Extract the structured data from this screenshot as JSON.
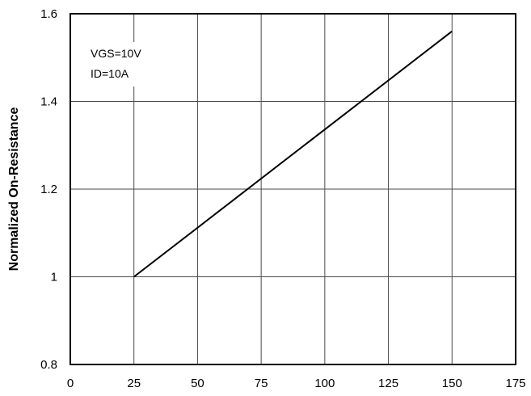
{
  "chart_data": {
    "type": "line",
    "title": "",
    "xlabel": "",
    "ylabel": "Normalized On-Resistance",
    "xlim": [
      0,
      175
    ],
    "ylim": [
      0.8,
      1.6
    ],
    "x_ticks": [
      0,
      25,
      50,
      75,
      100,
      125,
      150,
      175
    ],
    "y_ticks": [
      0.8,
      1.0,
      1.2,
      1.4,
      1.6
    ],
    "x_tick_labels": [
      "0",
      "25",
      "50",
      "75",
      "100",
      "125",
      "150",
      "175"
    ],
    "y_tick_labels": [
      "0.8",
      "1",
      "1.2",
      "1.4",
      "1.6"
    ],
    "grid": true,
    "annotations": [
      "VGS=10V",
      "ID=10A"
    ],
    "series": [
      {
        "x": [
          25,
          150
        ],
        "y": [
          1.0,
          1.56
        ]
      }
    ],
    "colors": {
      "line": "#000000",
      "grid": "#4a4a4a",
      "background": "#ffffff"
    }
  }
}
